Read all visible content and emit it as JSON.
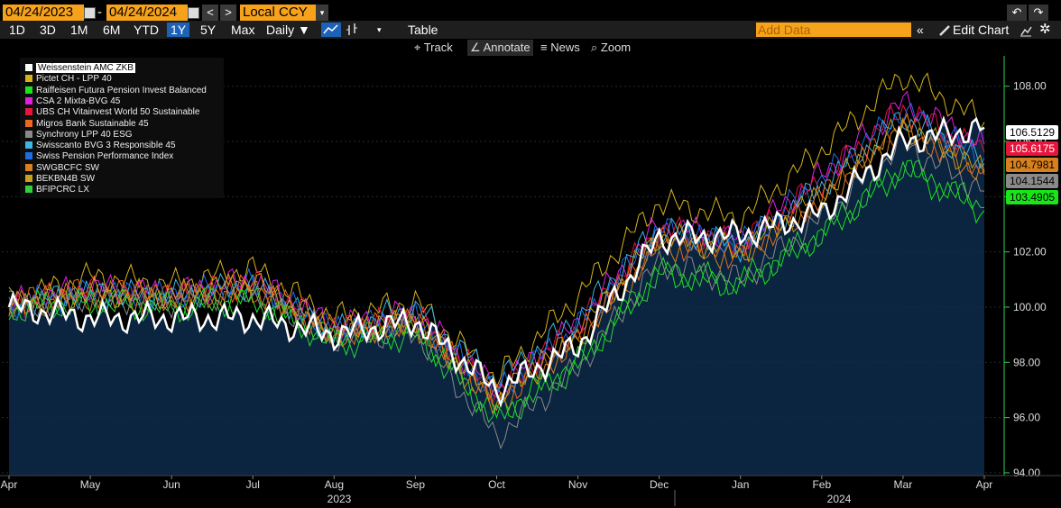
{
  "toolbar": {
    "start_date": "04/24/2023",
    "end_date": "04/24/2024",
    "date_sep": "-",
    "prev": "<",
    "next": ">",
    "currency": "Local CCY",
    "currency_drop": "▾",
    "undo": "↶",
    "redo": "↷"
  },
  "periods": [
    "1D",
    "3D",
    "1M",
    "6M",
    "YTD",
    "1Y",
    "5Y",
    "Max"
  ],
  "active_period": "1Y",
  "frequency": "Daily ▼",
  "table_label": "Table",
  "add_data_placeholder": "Add Data",
  "edit_chart": "Edit Chart",
  "tools": {
    "track": "Track",
    "annotate": "Annotate",
    "news": "News",
    "zoom": "Zoom"
  },
  "colors": {
    "accent": "#f7a21b",
    "area": "#0b2440",
    "axis": "#2fd24a",
    "bg": "#000000"
  },
  "chart_data": {
    "type": "line",
    "x": [
      "Apr",
      "May",
      "Jun",
      "Jul",
      "Aug",
      "Sep",
      "Oct",
      "Nov",
      "Dec",
      "Jan",
      "Feb",
      "Mar",
      "Apr"
    ],
    "x_years": [
      "2023",
      "2024"
    ],
    "y_ticks": [
      94.0,
      96.0,
      98.0,
      100.0,
      102.0,
      104.0,
      106.0,
      108.0
    ],
    "ylim": [
      93.9,
      109.1
    ],
    "series": [
      {
        "name": "Weissenstein AMC ZKB",
        "color": "#ffffff",
        "last": 106.5129,
        "values": [
          100.0,
          99.6,
          99.6,
          99.6,
          99.0,
          99.5,
          97.0,
          98.6,
          102.5,
          102.6,
          103.4,
          106.0,
          106.5
        ]
      },
      {
        "name": "Pictet CH - LPP 40",
        "color": "#d6b41c",
        "last": 106.7,
        "values": [
          100.2,
          101.1,
          100.8,
          101.4,
          99.6,
          100.2,
          97.4,
          100.4,
          103.8,
          103.2,
          105.7,
          108.4,
          106.7
        ]
      },
      {
        "name": "Raiffeisen Futura Pension Invest Balanced",
        "color": "#19e619",
        "last": 103.4905,
        "values": [
          100.0,
          100.2,
          100.0,
          100.3,
          98.8,
          99.2,
          96.1,
          98.0,
          101.2,
          100.8,
          102.6,
          105.0,
          103.5
        ]
      },
      {
        "name": "CSA 2 Mixta-BVG 45",
        "color": "#e020e0",
        "last": 105.9,
        "values": [
          100.1,
          100.7,
          100.5,
          101.0,
          99.3,
          99.8,
          97.0,
          99.4,
          103.0,
          102.4,
          104.8,
          107.4,
          105.9
        ]
      },
      {
        "name": "UBS CH Vitainvest World 50 Sustainable",
        "color": "#e8143c",
        "last": 105.6175,
        "values": [
          100.1,
          100.6,
          100.4,
          100.9,
          99.2,
          99.7,
          96.9,
          99.3,
          102.8,
          102.3,
          104.6,
          107.2,
          105.6
        ]
      },
      {
        "name": "Migros Bank Sustainable 45",
        "color": "#e86a1a",
        "last": 104.9,
        "values": [
          100.2,
          100.6,
          100.3,
          100.7,
          99.1,
          99.5,
          96.6,
          98.9,
          102.4,
          101.9,
          104.0,
          106.6,
          104.9
        ]
      },
      {
        "name": "Synchrony LPP 40 ESG",
        "color": "#8a8a8a",
        "last": 104.1544,
        "values": [
          99.9,
          100.4,
          100.2,
          100.6,
          98.9,
          99.1,
          95.3,
          97.8,
          101.6,
          101.0,
          103.2,
          105.9,
          104.2
        ]
      },
      {
        "name": "Swisscanto BVG 3 Responsible 45",
        "color": "#39b7e6",
        "last": 105.2,
        "values": [
          100.1,
          100.5,
          100.4,
          100.8,
          99.1,
          100.0,
          97.3,
          99.6,
          102.9,
          102.2,
          104.4,
          106.9,
          105.2
        ]
      },
      {
        "name": "Swiss Pension Performance Index",
        "color": "#1e6ee6",
        "last": 105.4,
        "values": [
          100.1,
          100.5,
          100.4,
          100.8,
          99.2,
          99.6,
          96.9,
          99.3,
          102.8,
          102.3,
          104.6,
          107.1,
          105.4
        ]
      },
      {
        "name": "SWGBCFC SW",
        "color": "#d8801e",
        "last": 104.7981,
        "values": [
          100.0,
          100.4,
          100.3,
          100.7,
          99.0,
          99.4,
          96.5,
          98.8,
          102.3,
          101.8,
          103.9,
          106.5,
          104.8
        ]
      },
      {
        "name": "BEKBN4B SW",
        "color": "#c8a21a",
        "last": 104.9,
        "values": [
          100.1,
          100.5,
          100.4,
          100.9,
          99.1,
          99.5,
          96.6,
          99.0,
          102.6,
          102.0,
          104.1,
          106.6,
          104.9
        ]
      },
      {
        "name": "BFIPCRC LX",
        "color": "#30d23a",
        "last": 103.6,
        "values": [
          99.9,
          100.2,
          100.0,
          100.3,
          98.7,
          99.0,
          95.9,
          97.9,
          101.3,
          100.9,
          102.7,
          105.1,
          103.6
        ]
      }
    ],
    "price_labels": [
      {
        "text": "106.5129",
        "bg": "#ffffff",
        "fg": "#000000"
      },
      {
        "text": "105.6175",
        "bg": "#e8143c",
        "fg": "#ffffff"
      },
      {
        "text": "104.7981",
        "bg": "#d8801e",
        "fg": "#000000"
      },
      {
        "text": "104.1544",
        "bg": "#8a8a8a",
        "fg": "#000000"
      },
      {
        "text": "103.4905",
        "bg": "#19e619",
        "fg": "#000000"
      }
    ]
  }
}
